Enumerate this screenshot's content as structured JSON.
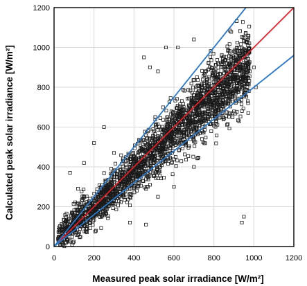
{
  "chart_data": {
    "type": "scatter",
    "title": "",
    "xlabel": "Measured peak solar irradiance [W/m²]",
    "ylabel": "Calculated peak solar irradiance [W/m²]",
    "xlim": [
      0,
      1200
    ],
    "ylim": [
      0,
      1200
    ],
    "x_ticks": [
      "0",
      "200",
      "400",
      "600",
      "800",
      "1000",
      "1200"
    ],
    "y_ticks": [
      "0",
      "200",
      "400",
      "600",
      "800",
      "1000",
      "1200"
    ],
    "grid": true,
    "legend": "none",
    "colors": {
      "points": "#1a1a1a",
      "reference_line": "#e0202a",
      "bound_lines": "#2a78c8",
      "grid": "#d9d9d9"
    },
    "lines": [
      {
        "slope": 1.0,
        "color": "#e0202a"
      },
      {
        "slope": 1.25,
        "color": "#2a78c8"
      },
      {
        "slope": 0.8,
        "color": "#2a78c8"
      }
    ],
    "scatter_sample": [
      [
        40,
        55
      ],
      [
        60,
        90
      ],
      [
        80,
        110
      ],
      [
        100,
        150
      ],
      [
        120,
        180
      ],
      [
        140,
        160
      ],
      [
        160,
        210
      ],
      [
        180,
        240
      ],
      [
        200,
        230
      ],
      [
        220,
        260
      ],
      [
        240,
        290
      ],
      [
        260,
        310
      ],
      [
        280,
        300
      ],
      [
        300,
        350
      ],
      [
        320,
        380
      ],
      [
        340,
        370
      ],
      [
        360,
        410
      ],
      [
        380,
        440
      ],
      [
        400,
        430
      ],
      [
        420,
        470
      ],
      [
        440,
        490
      ],
      [
        460,
        480
      ],
      [
        480,
        520
      ],
      [
        500,
        540
      ],
      [
        520,
        530
      ],
      [
        540,
        560
      ],
      [
        560,
        580
      ],
      [
        580,
        570
      ],
      [
        600,
        620
      ],
      [
        620,
        640
      ],
      [
        640,
        630
      ],
      [
        660,
        670
      ],
      [
        680,
        690
      ],
      [
        700,
        680
      ],
      [
        720,
        720
      ],
      [
        740,
        730
      ],
      [
        760,
        750
      ],
      [
        780,
        770
      ],
      [
        800,
        780
      ],
      [
        820,
        800
      ],
      [
        840,
        810
      ],
      [
        860,
        820
      ],
      [
        880,
        830
      ],
      [
        900,
        840
      ],
      [
        920,
        850
      ],
      [
        940,
        860
      ],
      [
        960,
        870
      ],
      [
        980,
        880
      ],
      [
        150,
        420
      ],
      [
        80,
        370
      ],
      [
        120,
        290
      ],
      [
        200,
        520
      ],
      [
        250,
        600
      ],
      [
        300,
        470
      ],
      [
        450,
        950
      ],
      [
        480,
        900
      ],
      [
        520,
        880
      ],
      [
        560,
        1000
      ],
      [
        620,
        1000
      ],
      [
        700,
        1040
      ],
      [
        880,
        1085
      ],
      [
        600,
        300
      ],
      [
        700,
        400
      ],
      [
        520,
        250
      ],
      [
        460,
        110
      ],
      [
        940,
        120
      ],
      [
        950,
        150
      ],
      [
        380,
        120
      ],
      [
        40,
        20
      ],
      [
        20,
        40
      ],
      [
        30,
        10
      ],
      [
        960,
        930
      ],
      [
        1000,
        900
      ],
      [
        1010,
        800
      ]
    ]
  }
}
